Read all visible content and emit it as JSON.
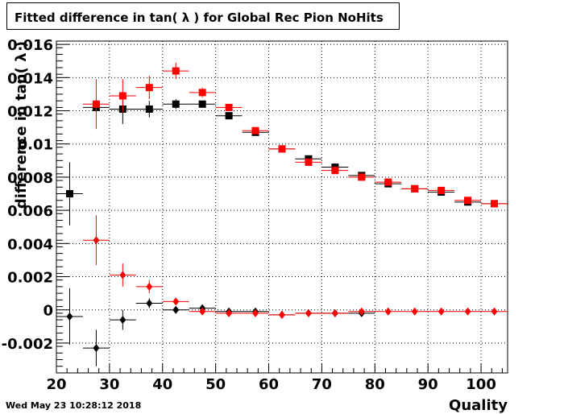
{
  "title": "Fitted difference in tan( λ ) for Global Rec Pion NoHits",
  "timestamp": "Wed May 23 10:28:12 2018",
  "chart_data": {
    "type": "scatter",
    "title": "Fitted difference in tan( λ ) for Global Rec Pion NoHits",
    "xlabel": "Quality",
    "ylabel": "difference in tan( λ )",
    "xlim": [
      20,
      105
    ],
    "ylim": [
      -0.0038,
      0.0162
    ],
    "xticks": [
      20,
      30,
      40,
      50,
      60,
      70,
      80,
      90,
      100
    ],
    "xtick_labels": [
      "20",
      "30",
      "40",
      "50",
      "60",
      "70",
      "80",
      "90",
      "100"
    ],
    "yticks": [
      -0.002,
      0,
      0.002,
      0.004,
      0.006,
      0.008,
      0.01,
      0.012,
      0.014,
      0.016
    ],
    "ytick_labels": [
      "-0.002",
      "0",
      "0.002",
      "0.004",
      "0.006",
      "0.008",
      "0.01",
      "0.012",
      "0.014",
      "0.016"
    ],
    "grid": true,
    "x_halfwidth": 2.5,
    "series": [
      {
        "marker": "square",
        "color": "#000000",
        "x": [
          22.5,
          27.5,
          32.5,
          37.5,
          42.5,
          47.5,
          52.5,
          57.5,
          62.5,
          67.5,
          72.5,
          77.5,
          82.5,
          87.5,
          92.5,
          97.5,
          102.5
        ],
        "y": [
          0.007,
          0.0122,
          0.0121,
          0.0121,
          0.0124,
          0.0124,
          0.0117,
          0.0107,
          0.0097,
          0.0091,
          0.0086,
          0.0081,
          0.0076,
          0.0073,
          0.0071,
          0.0065,
          0.0064
        ],
        "yerr": [
          0.0019,
          0.0003,
          0.0009,
          0.0005,
          0.0003,
          0.0002,
          0.0002,
          0.0001,
          0.0001,
          0.0001,
          0.0001,
          0.0001,
          0.0001,
          0.0001,
          0.0001,
          0.0001,
          0.0001
        ]
      },
      {
        "marker": "square",
        "color": "#ff0000",
        "x": [
          27.5,
          32.5,
          37.5,
          42.5,
          47.5,
          52.5,
          57.5,
          62.5,
          67.5,
          72.5,
          77.5,
          82.5,
          87.5,
          92.5,
          97.5,
          102.5
        ],
        "y": [
          0.0124,
          0.0129,
          0.0134,
          0.0144,
          0.0131,
          0.0122,
          0.0108,
          0.0097,
          0.0089,
          0.0084,
          0.008,
          0.0077,
          0.0073,
          0.0072,
          0.0066,
          0.0064
        ],
        "yerr": [
          0.0015,
          0.001,
          0.0007,
          0.0005,
          0.0003,
          0.0002,
          0.0001,
          0.0001,
          0.0001,
          0.0001,
          0.0001,
          0.0001,
          0.0001,
          0.0001,
          0.0001,
          0.0001
        ]
      },
      {
        "marker": "diamond",
        "color": "#000000",
        "x": [
          22.5,
          27.5,
          32.5,
          37.5,
          42.5,
          47.5,
          52.5,
          57.5,
          62.5,
          67.5,
          72.5,
          77.5
        ],
        "y": [
          -0.0004,
          -0.0023,
          -0.0006,
          0.0004,
          0.0,
          0.0001,
          -0.0001,
          -0.0001,
          -0.0003,
          -0.0002,
          -0.0002,
          -0.0002
        ],
        "yerr": [
          0.0017,
          0.0011,
          0.0006,
          0.0003,
          0.0002,
          0.0001,
          0.0001,
          0.0001,
          0.0001,
          0.0001,
          0.0001,
          0.0001
        ]
      },
      {
        "marker": "diamond",
        "color": "#ff0000",
        "x": [
          27.5,
          32.5,
          37.5,
          42.5,
          47.5,
          52.5,
          57.5,
          62.5,
          67.5,
          72.5,
          77.5,
          82.5,
          87.5,
          92.5,
          97.5,
          102.5
        ],
        "y": [
          0.0042,
          0.0021,
          0.0014,
          0.0005,
          -0.0001,
          -0.0002,
          -0.0002,
          -0.0003,
          -0.0002,
          -0.0002,
          -0.0001,
          -0.0001,
          -0.0001,
          -0.0001,
          -0.0001,
          -0.0001
        ],
        "yerr": [
          0.0015,
          0.0007,
          0.0004,
          0.0002,
          0.0001,
          0.0001,
          0.0001,
          0.0001,
          0.0001,
          0.0001,
          0.0001,
          0.0001,
          0.0001,
          0.0001,
          0.0001,
          0.0001
        ]
      }
    ]
  }
}
